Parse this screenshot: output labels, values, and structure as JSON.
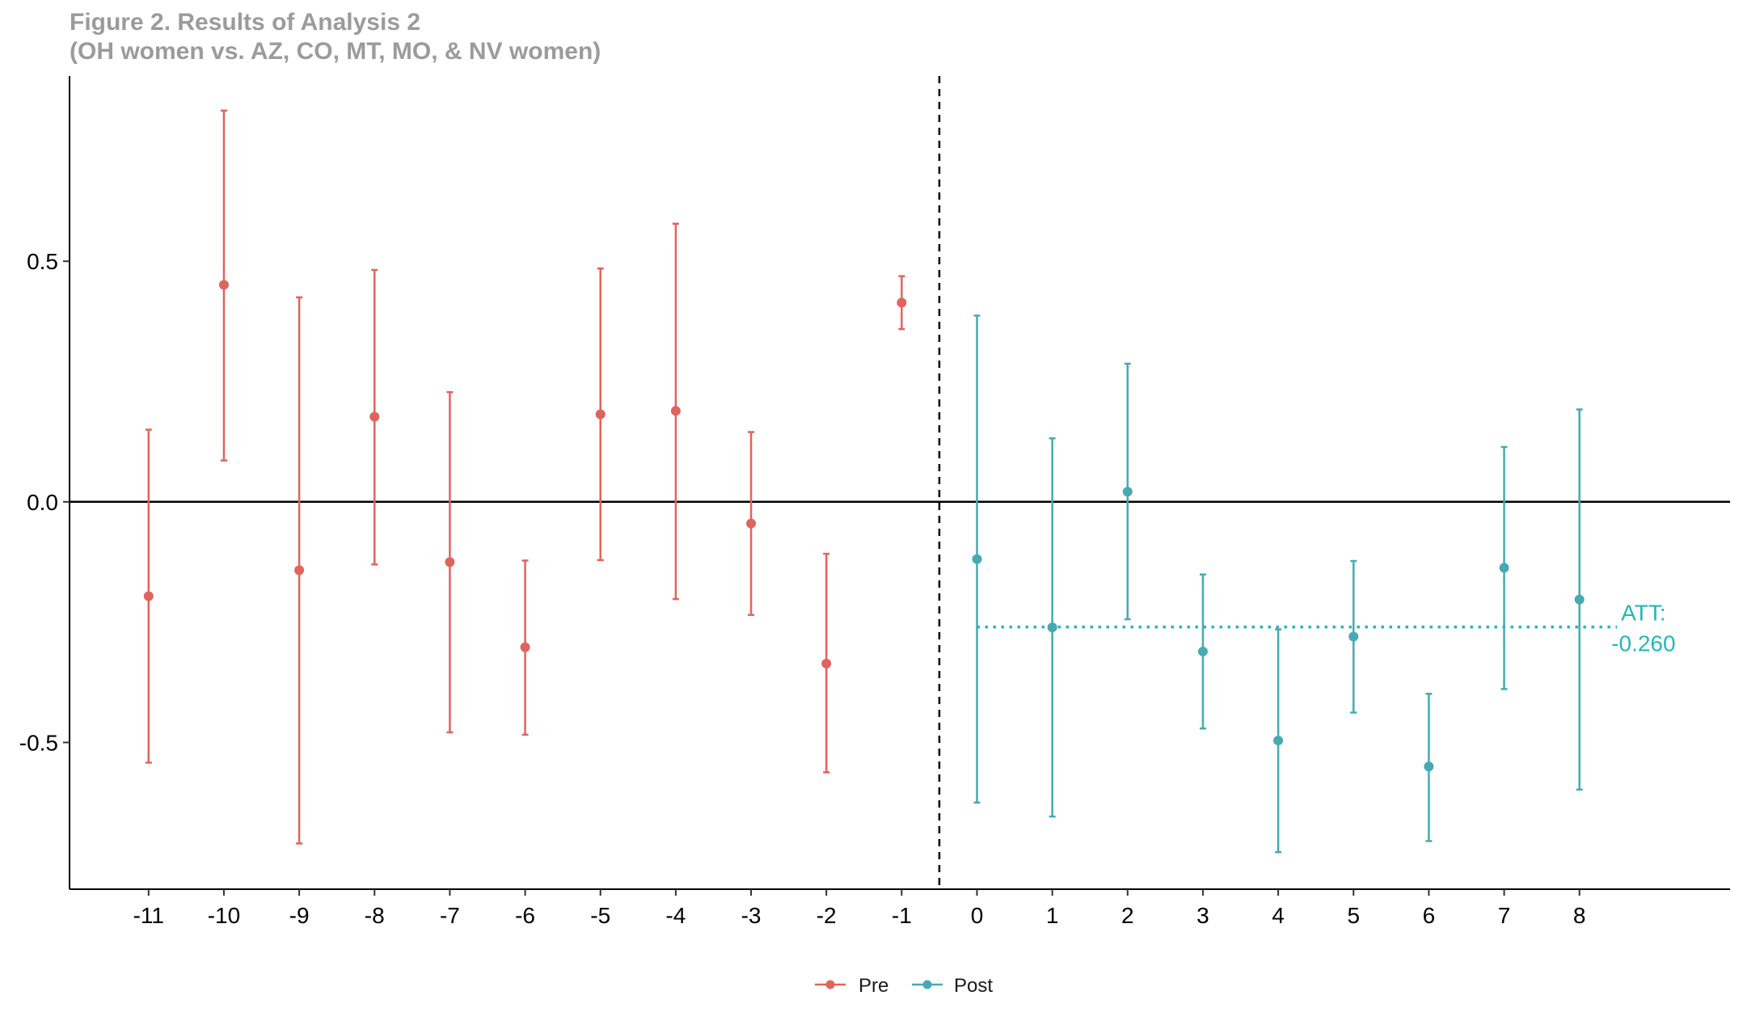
{
  "header": {
    "title_line1": "Figure 2. Results of Analysis 2",
    "title_line2": "(OH women vs. AZ, CO, MT, MO, & NV women)"
  },
  "colors": {
    "pre": "#e0645c",
    "post": "#46aab2",
    "att": "#22b8bc",
    "axis": "#000000",
    "title": "#9b9b9b"
  },
  "chart_data": {
    "type": "scatter",
    "title": "Figure 2. Results of Analysis 2",
    "subtitle": "(OH women vs. AZ, CO, MT, MO, & NV women)",
    "xlabel": "",
    "ylabel": "",
    "x_ticks": [
      "-11",
      "-10",
      "-9",
      "-8",
      "-7",
      "-6",
      "-5",
      "-4",
      "-3",
      "-2",
      "-1",
      "0",
      "1",
      "2",
      "3",
      "4",
      "5",
      "6",
      "7",
      "8"
    ],
    "y_ticks": [
      -0.5,
      0.0,
      0.5
    ],
    "y_tick_labels": [
      "-0.5",
      "0.0",
      "0.5"
    ],
    "xlim": [
      -12.05,
      10.0
    ],
    "ylim": [
      -0.805,
      0.885
    ],
    "grid": false,
    "reference_lines": {
      "horizontal_y": 0.0,
      "vertical_dashed_x": -0.5
    },
    "series": [
      {
        "name": "Pre",
        "points": [
          {
            "x": -11,
            "y": -0.196,
            "lo": -0.542,
            "hi": 0.15
          },
          {
            "x": -10,
            "y": 0.451,
            "lo": 0.086,
            "hi": 0.813
          },
          {
            "x": -9,
            "y": -0.142,
            "lo": -0.71,
            "hi": 0.425
          },
          {
            "x": -8,
            "y": 0.177,
            "lo": -0.13,
            "hi": 0.482
          },
          {
            "x": -7,
            "y": -0.125,
            "lo": -0.479,
            "hi": 0.228
          },
          {
            "x": -6,
            "y": -0.302,
            "lo": -0.484,
            "hi": -0.122
          },
          {
            "x": -5,
            "y": 0.182,
            "lo": -0.121,
            "hi": 0.485
          },
          {
            "x": -4,
            "y": 0.189,
            "lo": -0.202,
            "hi": 0.578
          },
          {
            "x": -3,
            "y": -0.045,
            "lo": -0.235,
            "hi": 0.145
          },
          {
            "x": -2,
            "y": -0.336,
            "lo": -0.562,
            "hi": -0.108
          },
          {
            "x": -1,
            "y": 0.414,
            "lo": 0.359,
            "hi": 0.469
          }
        ]
      },
      {
        "name": "Post",
        "points": [
          {
            "x": 0,
            "y": -0.119,
            "lo": -0.625,
            "hi": 0.387
          },
          {
            "x": 1,
            "y": -0.261,
            "lo": -0.654,
            "hi": 0.132
          },
          {
            "x": 2,
            "y": 0.021,
            "lo": -0.244,
            "hi": 0.287
          },
          {
            "x": 3,
            "y": -0.311,
            "lo": -0.471,
            "hi": -0.151
          },
          {
            "x": 4,
            "y": -0.496,
            "lo": -0.728,
            "hi": -0.265
          },
          {
            "x": 5,
            "y": -0.28,
            "lo": -0.438,
            "hi": -0.123
          },
          {
            "x": 6,
            "y": -0.55,
            "lo": -0.705,
            "hi": -0.399
          },
          {
            "x": 7,
            "y": -0.137,
            "lo": -0.389,
            "hi": 0.114
          },
          {
            "x": 8,
            "y": -0.203,
            "lo": -0.598,
            "hi": 0.192
          }
        ]
      }
    ],
    "att": {
      "label_line1": "ATT:",
      "label_line2": "-0.260",
      "value": -0.26,
      "x_start": 0,
      "x_end": 8.5
    },
    "legend": {
      "placement": "bottom",
      "entries": [
        "Pre",
        "Post"
      ]
    }
  }
}
